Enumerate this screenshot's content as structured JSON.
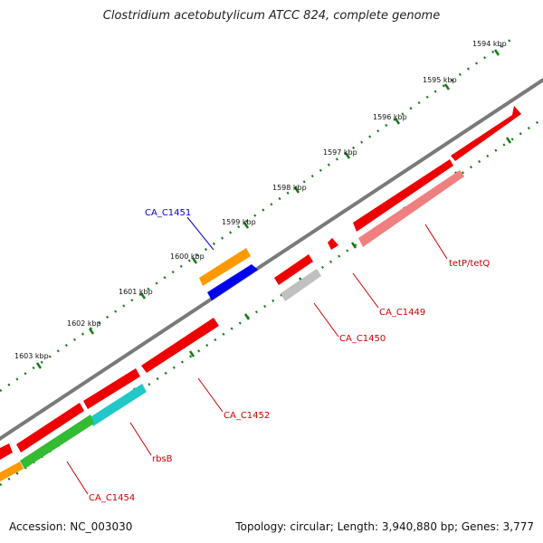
{
  "title": "Clostridium acetobutylicum ATCC 824, complete genome",
  "footer": {
    "accession": "Accession: NC_003030",
    "summary": "Topology: circular; Length: 3,940,880 bp; Genes: 3,777"
  },
  "ticks": [
    {
      "label": "1594 kbp"
    },
    {
      "label": "1595 kbp"
    },
    {
      "label": "1596 kbp"
    },
    {
      "label": "1597 kbp"
    },
    {
      "label": "1598 kbp"
    },
    {
      "label": "1599 kbp"
    },
    {
      "label": "1600 kbp"
    },
    {
      "label": "1601 kbp"
    },
    {
      "label": "1602 kbp"
    },
    {
      "label": "1603 kbp"
    }
  ],
  "gene_labels": [
    {
      "name": "CA_C1451",
      "color": "#0000cc"
    },
    {
      "name": "tetP/tetQ",
      "color": "#cc0000"
    },
    {
      "name": "CA_C1449",
      "color": "#cc0000"
    },
    {
      "name": "CA_C1450",
      "color": "#cc0000"
    },
    {
      "name": "CA_C1452",
      "color": "#cc0000"
    },
    {
      "name": "rbsB",
      "color": "#cc0000"
    },
    {
      "name": "CA_C1454",
      "color": "#cc0000"
    }
  ],
  "colors": {
    "backbone": "#808080",
    "tick": "#1a7a1a",
    "gene_red": "#ee0000",
    "gene_pink": "#f08080",
    "gene_grey": "#c0c0c0",
    "gene_orange": "#ff9900",
    "gene_blue": "#0000ee",
    "gene_cyan": "#20c8c8",
    "gene_green": "#33bb33"
  }
}
